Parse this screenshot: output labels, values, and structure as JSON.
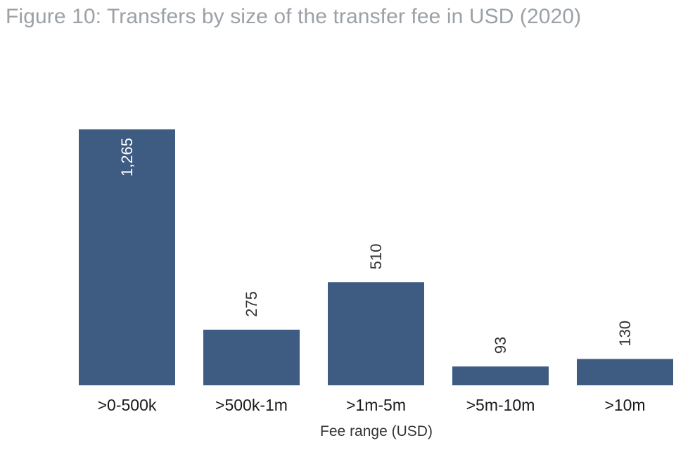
{
  "figure": {
    "title": "Figure 10: Transfers by size of the transfer fee in USD (2020)"
  },
  "chart_data": {
    "type": "bar",
    "categories": [
      ">0-500k",
      ">500k-1m",
      ">1m-5m",
      ">5m-10m",
      ">10m"
    ],
    "values": [
      1265,
      275,
      510,
      93,
      130
    ],
    "data_labels": [
      "1,265",
      "275",
      "510",
      "93",
      "130"
    ],
    "title": "Figure 10: Transfers by size of the transfer fee in USD (2020)",
    "xlabel": "Fee range (USD)",
    "ylabel": "",
    "ylim": [
      0,
      1265
    ],
    "grid": false,
    "legend": "none",
    "colors": {
      "bar": "#3e5c82",
      "label_outside": "#333333",
      "label_inside": "#ffffff",
      "tick_text": "#1a1a1a",
      "axis_title": "#333333"
    }
  }
}
